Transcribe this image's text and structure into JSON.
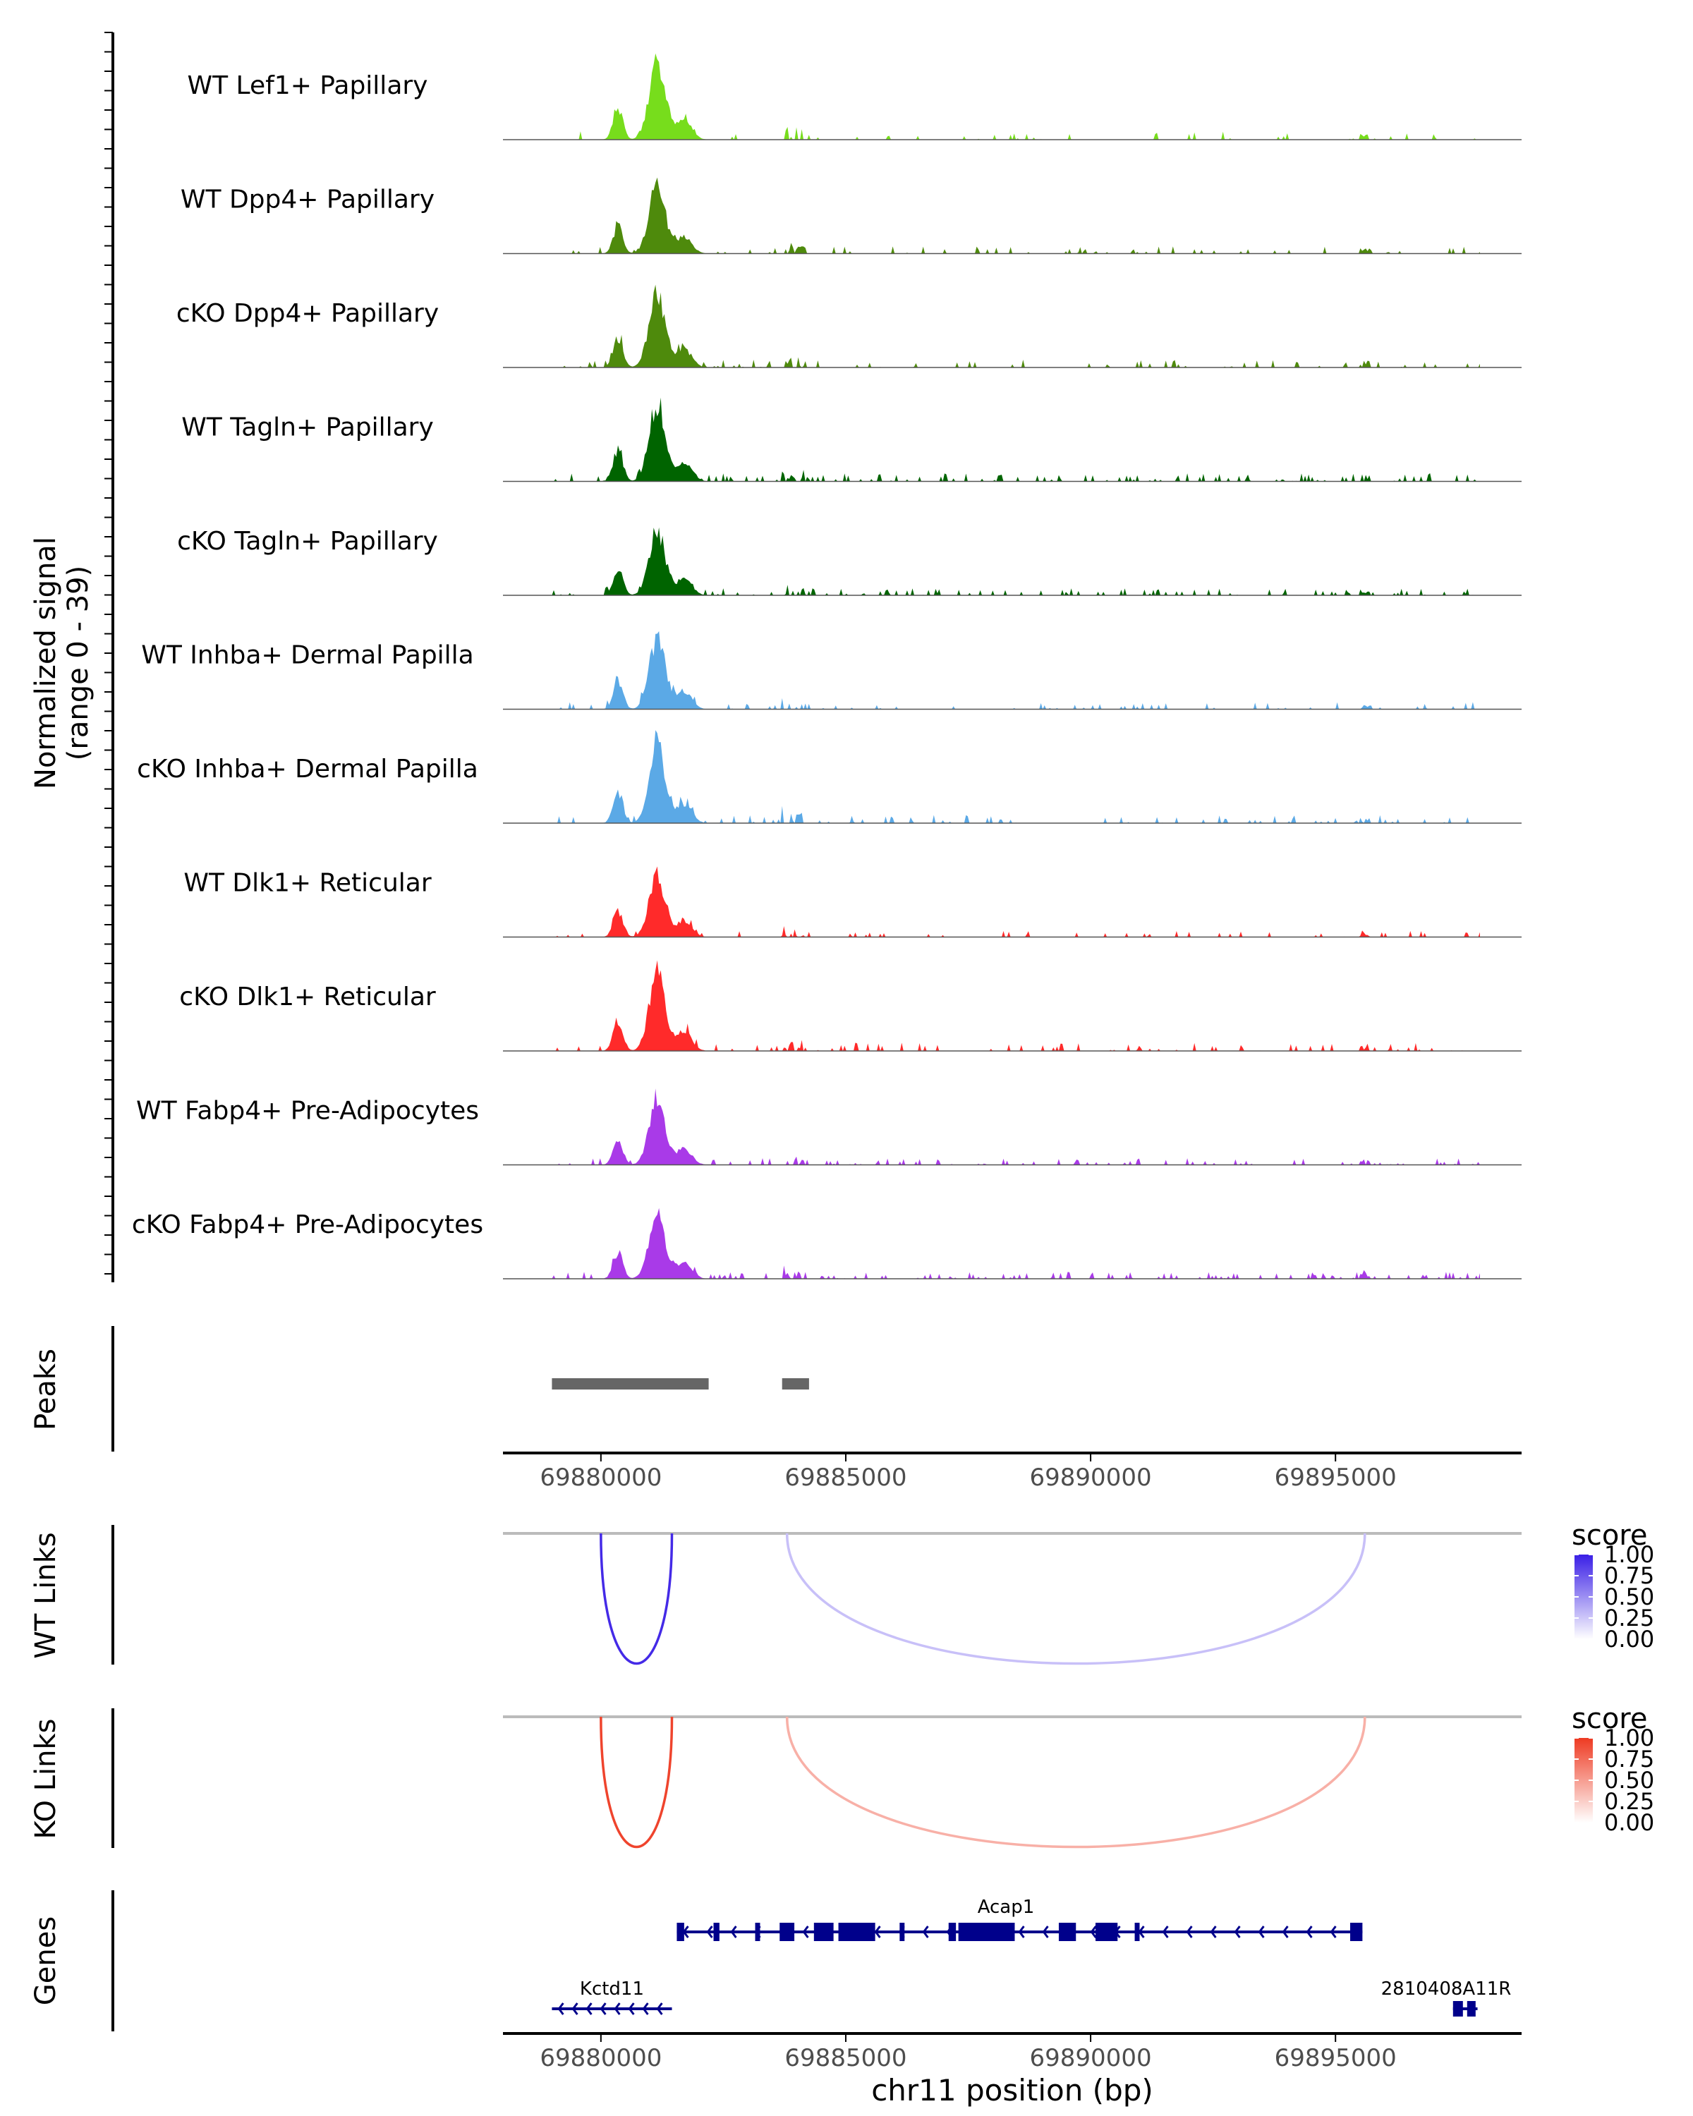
{
  "chart_data": {
    "type": "genome-track",
    "region": {
      "chromosome": "chr11",
      "start": 69878000,
      "end": 69898800
    },
    "coverage": {
      "ylabel": "Normalized signal",
      "ylabel_range": "(range 0 - 39)",
      "ylim": [
        0,
        39
      ],
      "tracks": [
        {
          "name": "WT Lef1+ Papillary",
          "color": "#77dd1c",
          "peak_height": 39,
          "noise": 0.08
        },
        {
          "name": "WT Dpp4+ Papillary",
          "color": "#4e8a0c",
          "peak_height": 34,
          "noise": 0.14
        },
        {
          "name": "cKO Dpp4+ Papillary",
          "color": "#4e8a0c",
          "peak_height": 37,
          "noise": 0.12
        },
        {
          "name": "WT Tagln+ Papillary",
          "color": "#006400",
          "peak_height": 39,
          "noise": 0.22
        },
        {
          "name": "cKO Tagln+ Papillary",
          "color": "#006400",
          "peak_height": 33,
          "noise": 0.2
        },
        {
          "name": "WT Inhba+ Dermal Papilla",
          "color": "#5ba9e6",
          "peak_height": 35,
          "noise": 0.12
        },
        {
          "name": "cKO Inhba+ Dermal Papilla",
          "color": "#5ba9e6",
          "peak_height": 39,
          "noise": 0.12
        },
        {
          "name": "WT Dlk1+ Reticular",
          "color": "#ff2a2a",
          "peak_height": 31,
          "noise": 0.14
        },
        {
          "name": "cKO Dlk1+ Reticular",
          "color": "#ff2a2a",
          "peak_height": 39,
          "noise": 0.16
        },
        {
          "name": "WT Fabp4+ Pre-Adipocytes",
          "color": "#a93ae8",
          "peak_height": 32,
          "noise": 0.18
        },
        {
          "name": "cKO Fabp4+ Pre-Adipocytes",
          "color": "#a93ae8",
          "peak_height": 33,
          "noise": 0.2
        }
      ]
    },
    "peaks": {
      "label": "Peaks",
      "regions": [
        {
          "start": 69879000,
          "end": 69882200
        },
        {
          "start": 69883700,
          "end": 69884250
        }
      ]
    },
    "axis": {
      "ticks": [
        69880000,
        69885000,
        69890000,
        69895000
      ],
      "tick_labels": [
        "69880000",
        "69885000",
        "69890000",
        "69895000"
      ],
      "xlabel": "chr11 position (bp)"
    },
    "links": [
      {
        "label": "WT Links",
        "legend_title": "score",
        "legend_ticks": [
          "1.00",
          "0.75",
          "0.50",
          "0.25",
          "0.00"
        ],
        "color_high": "#3a1fe6",
        "color_low": "#ffffff",
        "arcs": [
          {
            "start": 69880000,
            "end": 69881450,
            "score": 0.95
          },
          {
            "start": 69883800,
            "end": 69895600,
            "score": 0.28
          }
        ]
      },
      {
        "label": "KO Links",
        "legend_title": "score",
        "legend_ticks": [
          "1.00",
          "0.75",
          "0.50",
          "0.25",
          "0.00"
        ],
        "color_high": "#ee3a22",
        "color_low": "#ffffff",
        "arcs": [
          {
            "start": 69880000,
            "end": 69881450,
            "score": 0.95
          },
          {
            "start": 69883800,
            "end": 69895600,
            "score": 0.4
          }
        ]
      }
    ],
    "genes": {
      "label": "Genes",
      "color": "#00008b",
      "items": [
        {
          "name": "Acap1",
          "start": 69881550,
          "end": 69895550,
          "strand": "-",
          "row": 0
        },
        {
          "name": "Kctd11",
          "start": 69879000,
          "end": 69881450,
          "strand": "-",
          "row": 1
        },
        {
          "name": "2810408A11R",
          "start": 69897400,
          "end": 69897900,
          "strand": "-",
          "row": 1
        }
      ]
    }
  }
}
